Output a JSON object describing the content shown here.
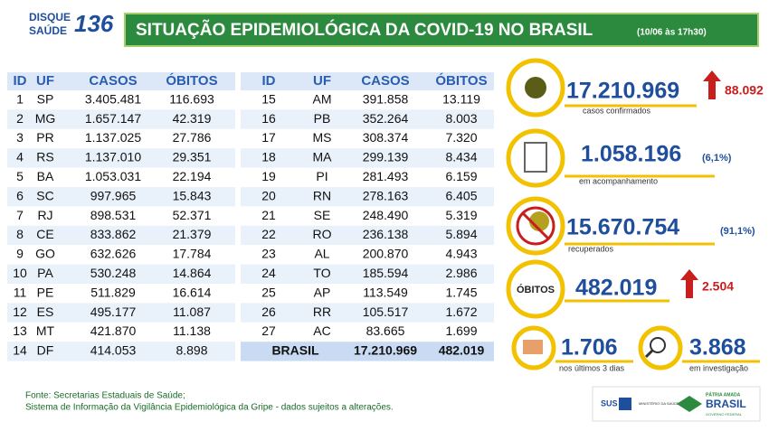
{
  "header": {
    "logo_top": "DISQUE",
    "logo_bottom": "SAÚDE",
    "logo_number": "136",
    "title": "SITUAÇÃO EPIDEMIOLÓGICA DA COVID-19 NO BRASIL",
    "timestamp": "(10/06 às 17h30)"
  },
  "tables": [
    {
      "header": [
        "ID",
        "UF",
        "CASOS",
        "ÓBITOS"
      ],
      "rows": [
        [
          "1",
          "SP",
          "3.405.481",
          "116.693"
        ],
        [
          "2",
          "MG",
          "1.657.147",
          "42.319"
        ],
        [
          "3",
          "PR",
          "1.137.025",
          "27.786"
        ],
        [
          "4",
          "RS",
          "1.137.010",
          "29.351"
        ],
        [
          "5",
          "BA",
          "1.053.031",
          "22.194"
        ],
        [
          "6",
          "SC",
          "997.965",
          "15.843"
        ],
        [
          "7",
          "RJ",
          "898.531",
          "52.371"
        ],
        [
          "8",
          "CE",
          "833.862",
          "21.379"
        ],
        [
          "9",
          "GO",
          "632.626",
          "17.784"
        ],
        [
          "10",
          "PA",
          "530.248",
          "14.864"
        ],
        [
          "11",
          "PE",
          "511.829",
          "16.614"
        ],
        [
          "12",
          "ES",
          "495.177",
          "11.087"
        ],
        [
          "13",
          "MT",
          "421.870",
          "11.138"
        ],
        [
          "14",
          "DF",
          "414.053",
          "8.898"
        ]
      ]
    },
    {
      "header": [
        "ID",
        "UF",
        "CASOS",
        "ÓBITOS"
      ],
      "rows": [
        [
          "15",
          "AM",
          "391.858",
          "13.119"
        ],
        [
          "16",
          "PB",
          "352.264",
          "8.003"
        ],
        [
          "17",
          "MS",
          "308.374",
          "7.320"
        ],
        [
          "18",
          "MA",
          "299.139",
          "8.434"
        ],
        [
          "19",
          "PI",
          "281.493",
          "6.159"
        ],
        [
          "20",
          "RN",
          "278.163",
          "6.405"
        ],
        [
          "21",
          "SE",
          "248.490",
          "5.319"
        ],
        [
          "22",
          "RO",
          "236.138",
          "5.894"
        ],
        [
          "23",
          "AL",
          "200.870",
          "4.943"
        ],
        [
          "24",
          "TO",
          "185.594",
          "2.986"
        ],
        [
          "25",
          "AP",
          "113.549",
          "1.745"
        ],
        [
          "26",
          "RR",
          "105.517",
          "1.672"
        ],
        [
          "27",
          "AC",
          "83.665",
          "1.699"
        ]
      ],
      "total": [
        "BRASIL",
        "17.210.969",
        "482.019"
      ]
    }
  ],
  "stats": {
    "confirmed": {
      "value": "17.210.969",
      "change": "88.092",
      "label": "casos confirmados"
    },
    "monitoring": {
      "value": "1.058.196",
      "percent": "(6,1%)",
      "label": "em acompanhamento"
    },
    "recovered": {
      "value": "15.670.754",
      "percent": "(91,1%)",
      "label": "recuperados"
    },
    "deaths": {
      "icon_label": "ÓBITOS",
      "value": "482.019",
      "change": "2.504"
    },
    "recent": {
      "value": "1.706",
      "label": "nos últimos 3 dias"
    },
    "investigation": {
      "value": "3.868",
      "label": "em investigação"
    }
  },
  "footer": {
    "source_1": "Fonte: Secretarias Estaduais de Saúde;",
    "source_2": "Sistema de Informação da Vigilância Epidemiológica da Gripe - dados sujeitos a alterações."
  },
  "logos": {
    "sus": "SUS",
    "ministry": "MINISTÉRIO DA SAÚDE",
    "slogan": "PÁTRIA AMADA",
    "country": "BRASIL",
    "government": "GOVERNO FEDERAL"
  }
}
